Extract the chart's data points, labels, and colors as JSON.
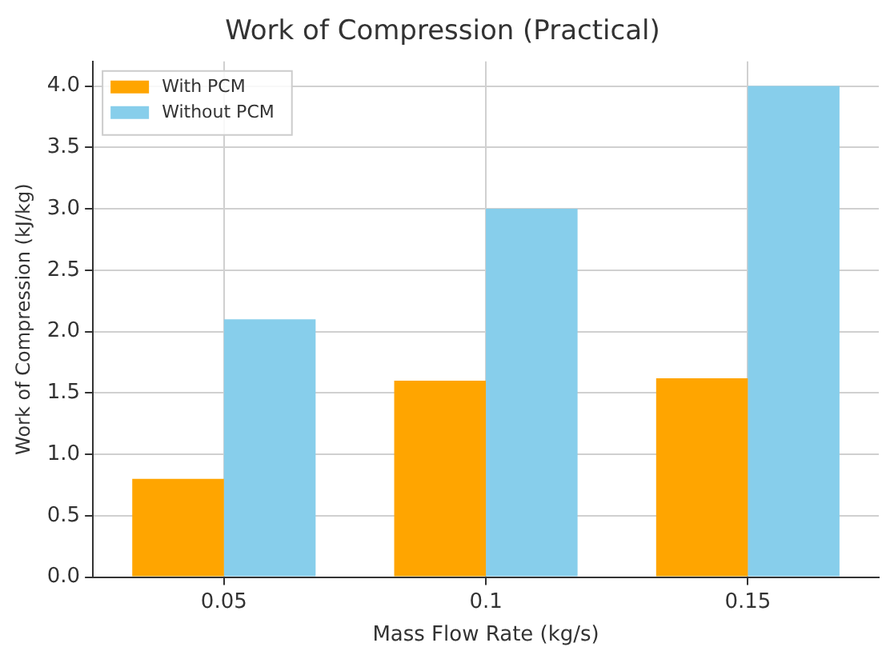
{
  "chart_data": {
    "type": "bar",
    "title": "Work of Compression (Practical)",
    "xlabel": "Mass Flow Rate (kg/s)",
    "ylabel": "Work of Compression (kJ/kg)",
    "categories": [
      "0.05",
      "0.1",
      "0.15"
    ],
    "series": [
      {
        "name": "With PCM",
        "color": "#ffa500",
        "values": [
          0.8,
          1.6,
          1.62
        ]
      },
      {
        "name": "Without PCM",
        "color": "#87ceeb",
        "values": [
          2.1,
          3.0,
          4.0
        ]
      }
    ],
    "ylim": [
      0,
      4.2
    ],
    "yticks": [
      {
        "value": 0,
        "label": "0.0"
      },
      {
        "value": 0.5,
        "label": "0.5"
      },
      {
        "value": 1,
        "label": "1.0"
      },
      {
        "value": 1.5,
        "label": "1.5"
      },
      {
        "value": 2,
        "label": "2.0"
      },
      {
        "value": 2.5,
        "label": "2.5"
      },
      {
        "value": 3,
        "label": "3.0"
      },
      {
        "value": 3.5,
        "label": "3.5"
      },
      {
        "value": 4,
        "label": "4.0"
      }
    ],
    "grid": true,
    "legend": "top left"
  }
}
